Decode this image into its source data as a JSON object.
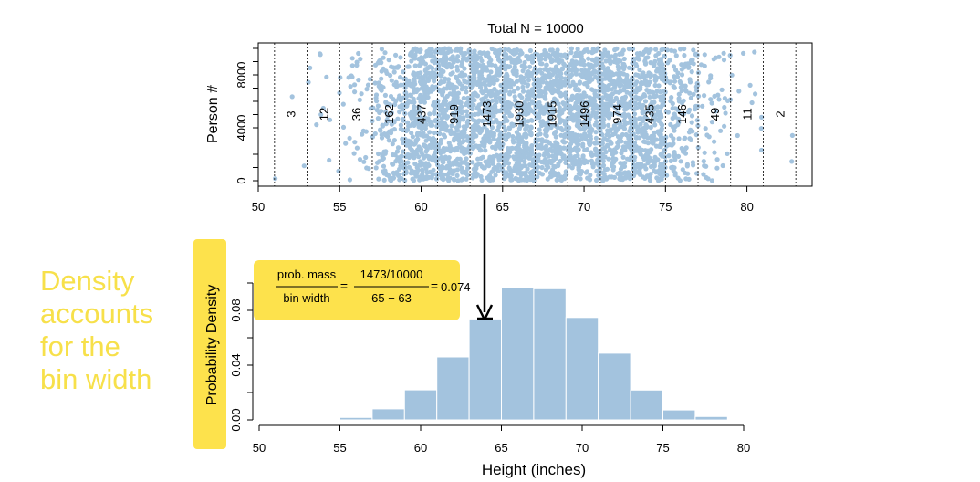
{
  "side_note": {
    "lines": [
      "Density",
      "accounts",
      "for the",
      "bin width"
    ],
    "color": "#f7e04a"
  },
  "highlight_color": "#fde24c",
  "chart_data": [
    {
      "type": "scatter",
      "title": "Total N = 10000",
      "xlabel": "",
      "ylabel": "Person #",
      "xlim": [
        50,
        84
      ],
      "ylim": [
        0,
        10000
      ],
      "x_ticks": [
        50,
        55,
        60,
        65,
        70,
        75,
        80
      ],
      "y_ticks": [
        0,
        4000,
        8000
      ],
      "bin_edges": [
        51,
        53,
        55,
        57,
        59,
        61,
        63,
        65,
        67,
        69,
        71,
        73,
        75,
        77,
        79,
        81,
        83
      ],
      "bin_counts": [
        3,
        12,
        36,
        162,
        437,
        919,
        1473,
        1930,
        1915,
        1496,
        974,
        435,
        146,
        49,
        11,
        2
      ],
      "point_color": "#a3c3de",
      "total": 10000
    },
    {
      "type": "bar",
      "title": "",
      "xlabel": "Height (inches)",
      "ylabel": "Probability Density",
      "xlim": [
        50,
        80
      ],
      "ylim": [
        0,
        0.1
      ],
      "x_ticks": [
        50,
        55,
        60,
        65,
        70,
        75,
        80
      ],
      "y_ticks": [
        "0.00",
        "0.04",
        "0.08"
      ],
      "bin_edges": [
        51,
        53,
        55,
        57,
        59,
        61,
        63,
        65,
        67,
        69,
        71,
        73,
        75,
        77,
        79
      ],
      "values": [
        0.0002,
        0.0006,
        0.0018,
        0.0081,
        0.0219,
        0.046,
        0.0737,
        0.0965,
        0.0958,
        0.0748,
        0.0487,
        0.0218,
        0.0073,
        0.0025
      ],
      "bar_color": "#a3c3de",
      "annotation": {
        "num_label": "prob. mass",
        "den_label": "bin width",
        "num_value": "1473/10000",
        "den_value": "65 − 63",
        "result": "0.074",
        "arrow_from_bin": [
          63,
          65
        ]
      }
    }
  ]
}
